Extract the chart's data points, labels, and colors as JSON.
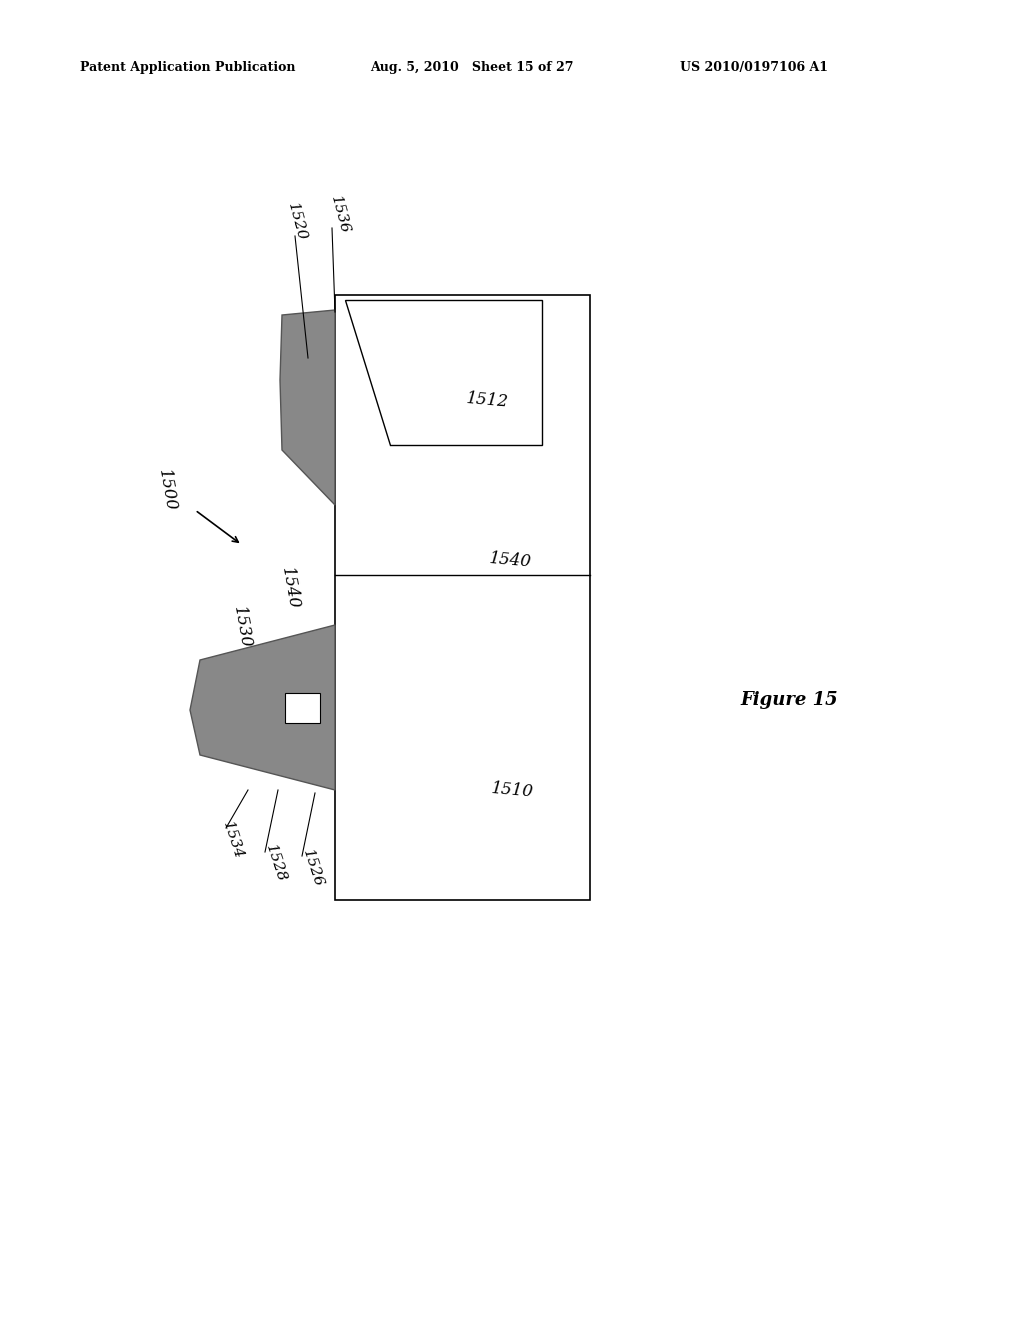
{
  "bg_color": "#ffffff",
  "header_left": "Patent Application Publication",
  "header_mid": "Aug. 5, 2010   Sheet 15 of 27",
  "header_right": "US 2010/0197106 A1",
  "figure_label": "Figure 15",
  "gray_dark": "#888888",
  "gray_mid": "#aaaaaa",
  "gray_light": "#cccccc",
  "label_1500": "1500",
  "label_1510": "1510",
  "label_1512": "1512",
  "label_1520": "1520",
  "label_1530": "1530",
  "label_1534": "1534",
  "label_1540_left": "1540",
  "label_1540_right": "1540",
  "label_1536": "1536",
  "label_1528": "1528",
  "label_1526": "1526"
}
